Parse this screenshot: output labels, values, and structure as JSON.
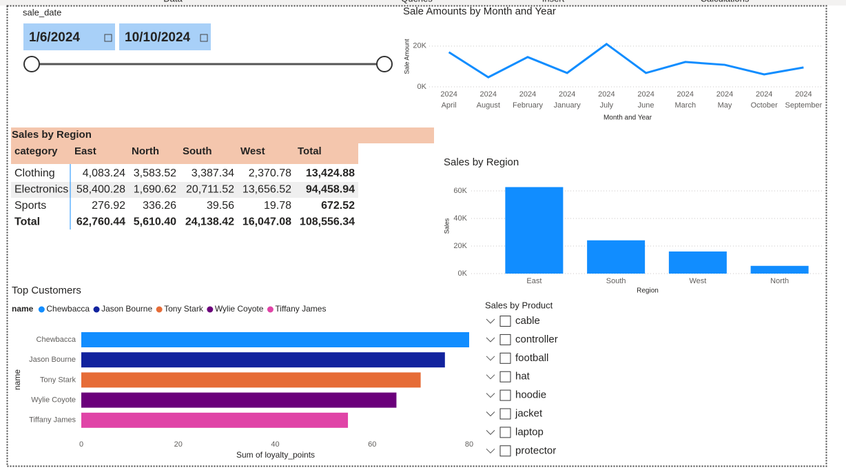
{
  "tabs": [
    "Data",
    "Queries",
    "Insert",
    "Calculations"
  ],
  "date_slicer": {
    "label": "sale_date",
    "start": "1/6/2024",
    "end": "10/10/2024"
  },
  "table": {
    "title": "Sales by Region",
    "columns": [
      "category",
      "East",
      "North",
      "South",
      "West",
      "Total"
    ],
    "rows": [
      [
        "Clothing",
        "4,083.24",
        "3,583.52",
        "3,387.34",
        "2,370.78",
        "13,424.88"
      ],
      [
        "Electronics",
        "58,400.28",
        "1,690.62",
        "20,711.52",
        "13,656.52",
        "94,458.94"
      ],
      [
        "Sports",
        "276.92",
        "336.26",
        "39.56",
        "19.78",
        "672.52"
      ],
      [
        "Total",
        "62,760.44",
        "5,610.40",
        "24,138.42",
        "16,047.08",
        "108,556.34"
      ]
    ]
  },
  "product_slicer": {
    "title": "Sales by Product",
    "items": [
      "cable",
      "controller",
      "football",
      "hat",
      "hoodie",
      "jacket",
      "laptop",
      "protector"
    ]
  },
  "chart_data": [
    {
      "type": "line",
      "title": "Sale Amounts by Month and Year",
      "xlabel": "Month and Year",
      "ylabel": "Sale Amount",
      "categories": [
        [
          "2024",
          "April"
        ],
        [
          "2024",
          "August"
        ],
        [
          "2024",
          "February"
        ],
        [
          "2024",
          "January"
        ],
        [
          "2024",
          "July"
        ],
        [
          "2024",
          "June"
        ],
        [
          "2024",
          "March"
        ],
        [
          "2024",
          "May"
        ],
        [
          "2024",
          "October"
        ],
        [
          "2024",
          "September"
        ]
      ],
      "values": [
        17000,
        4700,
        14600,
        6800,
        21000,
        6800,
        12200,
        10800,
        6100,
        9500
      ],
      "color": "#118DFF",
      "ylim": [
        0,
        24000
      ],
      "yticks": [
        {
          "value": 0,
          "label": "0K"
        },
        {
          "value": 20000,
          "label": "20K"
        }
      ],
      "grid": true
    },
    {
      "type": "bar",
      "title": "Sales by Region",
      "xlabel": "Region",
      "ylabel": "Sales",
      "categories": [
        "East",
        "South",
        "West",
        "North"
      ],
      "values": [
        62760.44,
        24138.42,
        16047.08,
        5610.4
      ],
      "color": "#118DFF",
      "ylim": [
        0,
        67500
      ],
      "yticks": [
        {
          "value": 0,
          "label": "0K"
        },
        {
          "value": 20000,
          "label": "20K"
        },
        {
          "value": 40000,
          "label": "40K"
        },
        {
          "value": 60000,
          "label": "60K"
        }
      ],
      "grid": true
    },
    {
      "type": "hbar",
      "title": "Top Customers",
      "legend_title": "name",
      "xlabel": "Sum of loyalty_points",
      "ylabel": "name",
      "categories": [
        "Chewbacca",
        "Jason Bourne",
        "Tony Stark",
        "Wylie Coyote",
        "Tiffany James"
      ],
      "values": [
        80,
        75,
        70,
        65,
        55
      ],
      "colors": [
        "#118DFF",
        "#12239E",
        "#E66C37",
        "#6B007B",
        "#E044A7"
      ],
      "xlim": [
        0,
        80
      ],
      "xticks": [
        0,
        20,
        40,
        60,
        80
      ]
    }
  ]
}
